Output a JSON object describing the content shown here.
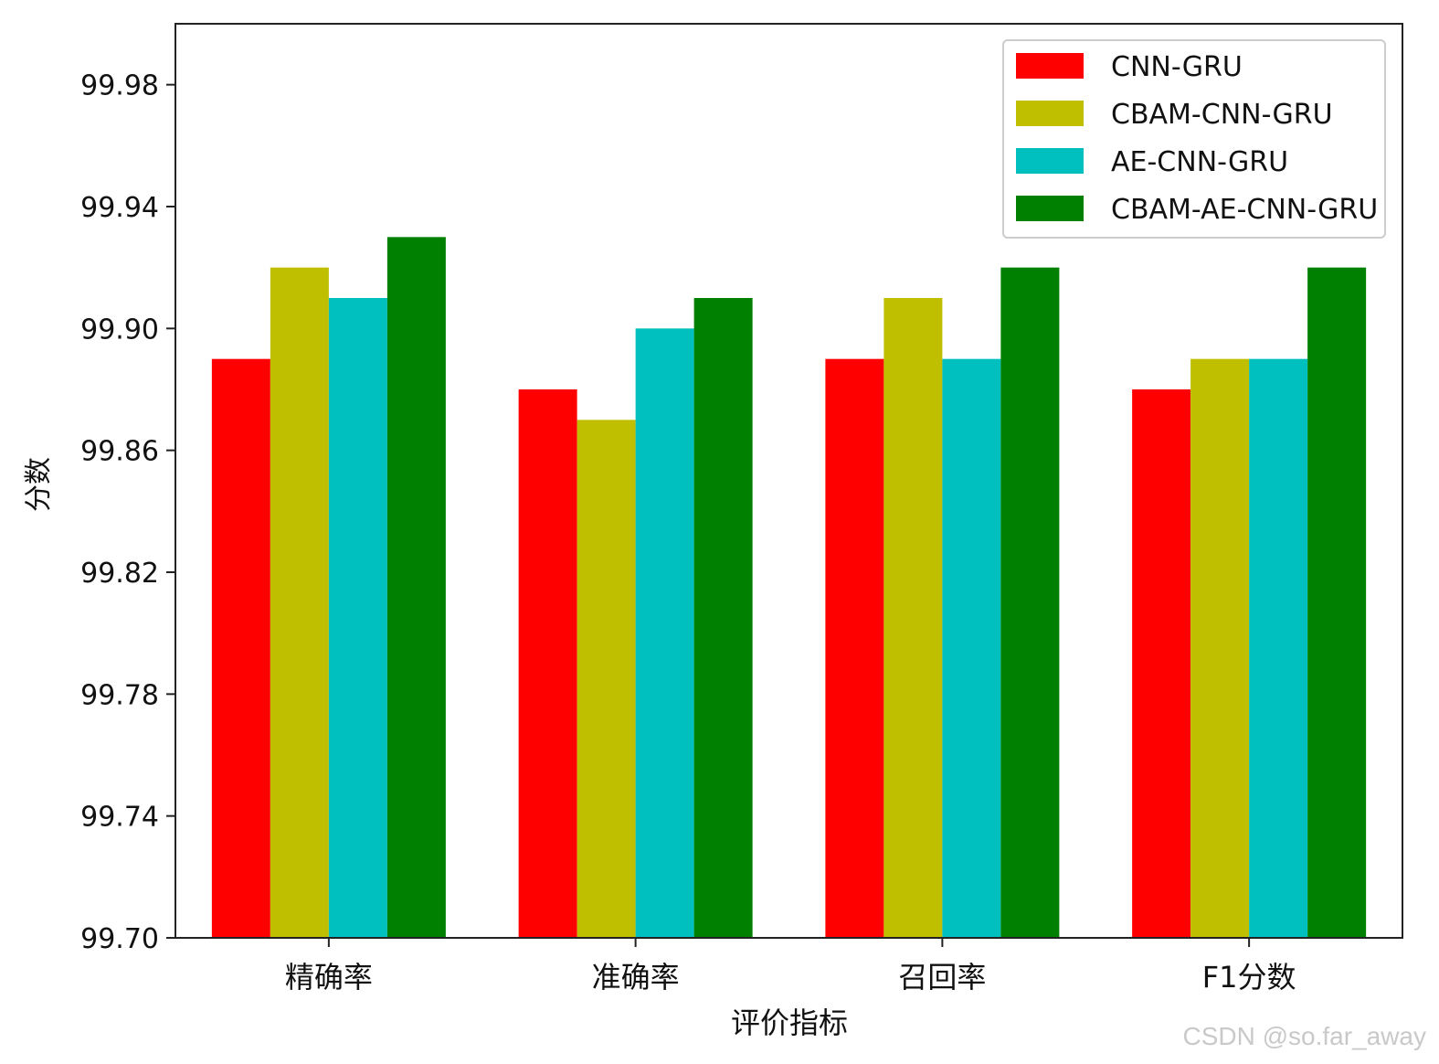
{
  "chart_data": {
    "type": "bar",
    "xlabel": "评价指标",
    "ylabel": "分数",
    "categories": [
      "精确率",
      "准确率",
      "召回率",
      "F1分数"
    ],
    "ylim": [
      99.7,
      100.0
    ],
    "yticks": [
      "99.70",
      "99.74",
      "99.78",
      "99.82",
      "99.86",
      "99.90",
      "99.94",
      "99.98"
    ],
    "legend_position": "top-right",
    "series": [
      {
        "name": "CNN-GRU",
        "color": "#ff0000",
        "values": [
          99.89,
          99.88,
          99.89,
          99.88
        ]
      },
      {
        "name": "CBAM-CNN-GRU",
        "color": "#bfbf00",
        "values": [
          99.92,
          99.87,
          99.91,
          99.89
        ]
      },
      {
        "name": "AE-CNN-GRU",
        "color": "#00bfbf",
        "values": [
          99.91,
          99.9,
          99.89,
          99.89
        ]
      },
      {
        "name": "CBAM-AE-CNN-GRU",
        "color": "#008000",
        "values": [
          99.93,
          99.91,
          99.92,
          99.92
        ]
      }
    ]
  },
  "watermark": "CSDN @so.far_away"
}
